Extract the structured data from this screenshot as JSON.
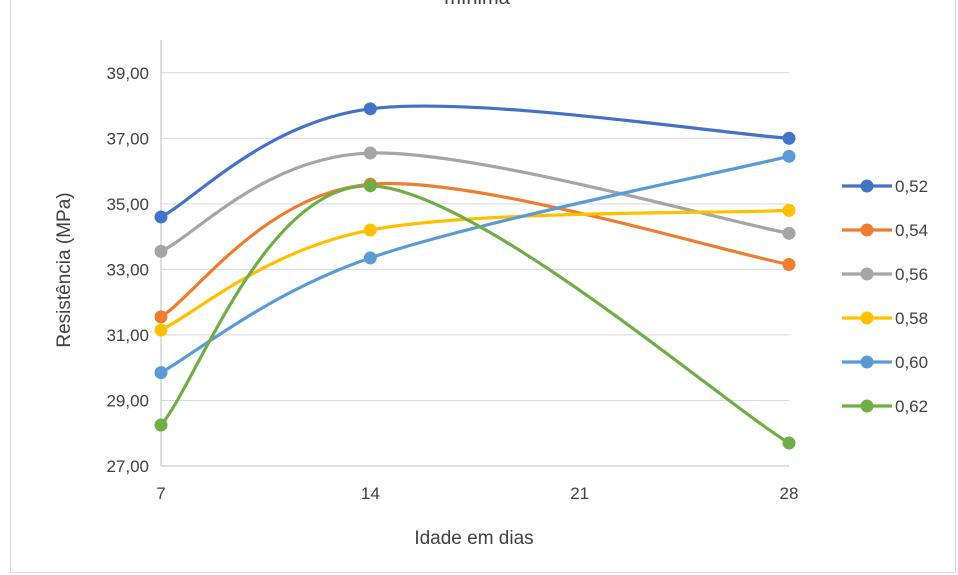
{
  "chart_data": {
    "type": "line",
    "title": "mínima",
    "xlabel": "Idade em dias",
    "ylabel": "Resistência (MPa)",
    "x_ticks": [
      "7",
      "14",
      "21",
      "28"
    ],
    "x_tick_values": [
      7,
      14,
      21,
      28
    ],
    "y_ticks": [
      "27,00",
      "29,00",
      "31,00",
      "33,00",
      "35,00",
      "37,00",
      "39,00"
    ],
    "y_tick_values": [
      27,
      29,
      31,
      33,
      35,
      37,
      39
    ],
    "xlim": [
      7,
      28
    ],
    "ylim": [
      27,
      40
    ],
    "grid": "horizontal",
    "smooth": true,
    "legend_position": "right",
    "x": [
      7,
      14,
      28
    ],
    "series": [
      {
        "name": "0,52",
        "color": "#4472c4",
        "values": [
          34.6,
          37.9,
          37.0
        ]
      },
      {
        "name": "0,54",
        "color": "#ed7d31",
        "values": [
          31.55,
          35.6,
          33.15
        ]
      },
      {
        "name": "0,56",
        "color": "#a5a5a5",
        "values": [
          33.55,
          36.55,
          34.1
        ]
      },
      {
        "name": "0,58",
        "color": "#ffc000",
        "values": [
          31.15,
          34.2,
          34.8
        ]
      },
      {
        "name": "0,60",
        "color": "#5b9bd5",
        "values": [
          29.85,
          33.35,
          36.45
        ]
      },
      {
        "name": "0,62",
        "color": "#70ad47",
        "values": [
          28.25,
          35.55,
          27.7
        ]
      }
    ]
  }
}
